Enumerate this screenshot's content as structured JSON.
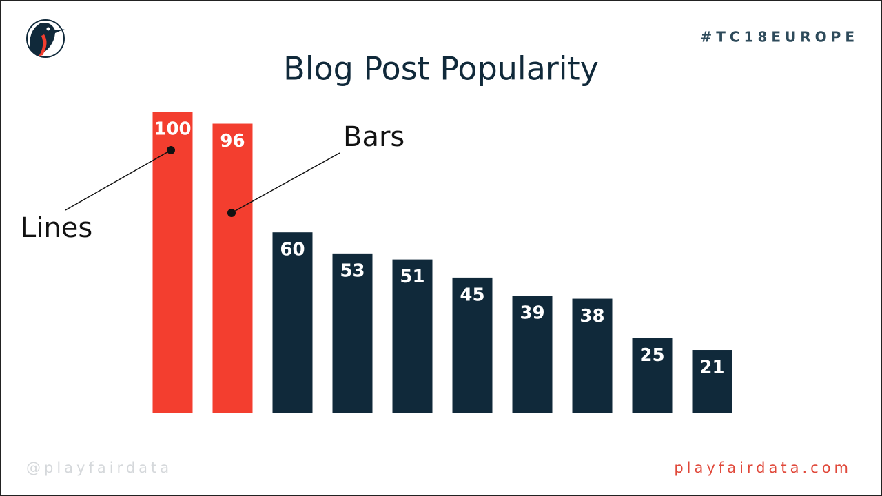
{
  "header": {
    "hashtag": "#TC18EUROPE",
    "handle": "@playfairdata",
    "site": "playfairdata.com"
  },
  "chart_data": {
    "type": "bar",
    "title": "Blog Post Popularity",
    "categories": [
      null,
      null,
      null,
      null,
      null,
      null,
      null,
      null,
      null,
      null
    ],
    "values": [
      100,
      96,
      60,
      53,
      51,
      45,
      39,
      38,
      25,
      21
    ],
    "colors": [
      "#f33e2f",
      "#f33e2f",
      "#10293a",
      "#10293a",
      "#10293a",
      "#10293a",
      "#10293a",
      "#10293a",
      "#10293a",
      "#10293a"
    ],
    "ylim": [
      0,
      100
    ],
    "annotations": [
      "Lines",
      "Bars"
    ]
  }
}
